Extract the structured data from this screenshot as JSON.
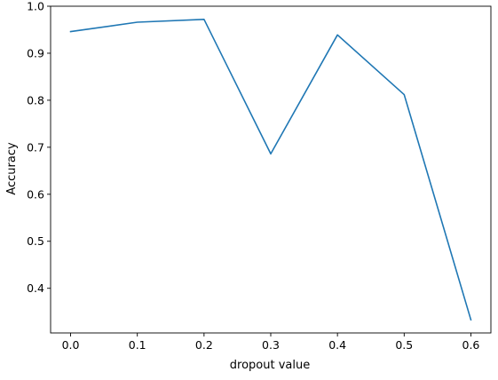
{
  "chart_data": {
    "type": "line",
    "title": "",
    "xlabel": "dropout value",
    "ylabel": "Accuracy",
    "xlim": [
      -0.03,
      0.63
    ],
    "ylim": [
      0.305,
      1.0
    ],
    "xticks": [
      0.0,
      0.1,
      0.2,
      0.3,
      0.4,
      0.5,
      0.6
    ],
    "xtick_labels": [
      "0.0",
      "0.1",
      "0.2",
      "0.3",
      "0.4",
      "0.5",
      "0.6"
    ],
    "yticks": [
      0.4,
      0.5,
      0.6,
      0.7,
      0.8,
      0.9,
      1.0
    ],
    "ytick_labels": [
      "0.4",
      "0.5",
      "0.6",
      "0.7",
      "0.8",
      "0.9",
      "1.0"
    ],
    "grid": false,
    "series": [
      {
        "x": [
          0.0,
          0.1,
          0.2,
          0.3,
          0.4,
          0.5,
          0.6
        ],
        "values": [
          0.946,
          0.966,
          0.972,
          0.686,
          0.939,
          0.812,
          0.333
        ],
        "color": "#1f77b4"
      }
    ]
  }
}
